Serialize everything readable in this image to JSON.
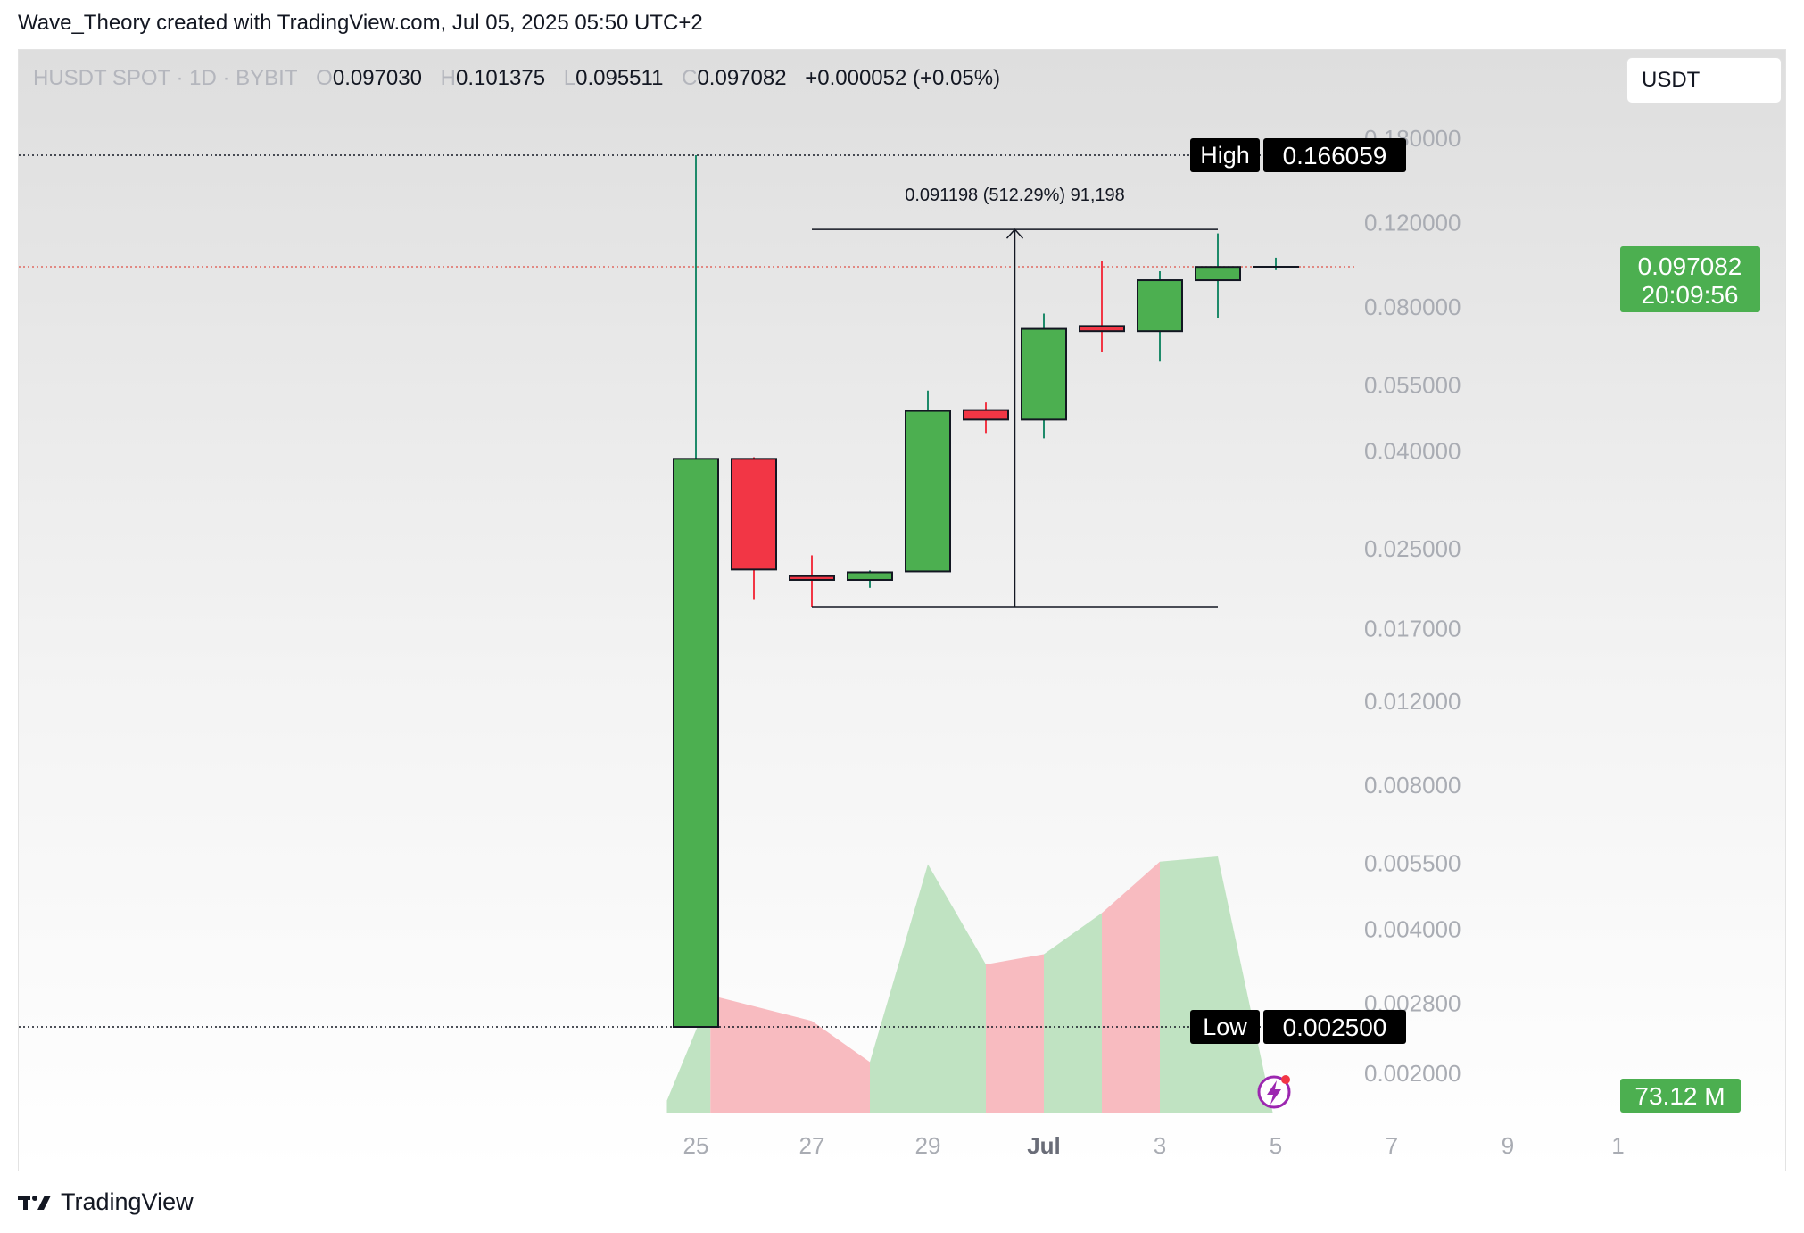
{
  "header": {
    "credit": "Wave_Theory created with TradingView.com, Jul 05, 2025 05:50 UTC+2"
  },
  "legend": {
    "symbol": "HUSDT SPOT · 1D · BYBIT",
    "o_label": "O",
    "o": "0.097030",
    "h_label": "H",
    "h": "0.101375",
    "l_label": "L",
    "l": "0.095511",
    "c_label": "C",
    "c": "0.097082",
    "change": "+0.000052 (+0.05%)"
  },
  "currency": "USDT",
  "high_label": {
    "text": "High",
    "value": "0.166059"
  },
  "low_label": {
    "text": "Low",
    "value": "0.002500"
  },
  "last_price": {
    "value": "0.097082",
    "countdown": "20:09:56"
  },
  "volume_label": "73.12 M",
  "measure_text": "0.091198 (512.29%) 91,198",
  "footer": {
    "brand": "TradingView"
  },
  "colors": {
    "up": "#4caf50",
    "down": "#f23645",
    "volume_up": "#bde2bf",
    "volume_down": "#f8b7bd",
    "price_tag": "#4caf50"
  },
  "chart_data": {
    "type": "candlestick",
    "scale": "log",
    "y_ticks": [
      "0.180000",
      "0.120000",
      "0.080000",
      "0.055000",
      "0.040000",
      "0.025000",
      "0.017000",
      "0.012000",
      "0.008000",
      "0.005500",
      "0.004000",
      "0.002800",
      "0.002000"
    ],
    "x_ticks": [
      "25",
      "27",
      "29",
      "Jul",
      "3",
      "5",
      "7",
      "9",
      "1"
    ],
    "candles": [
      {
        "date": "25",
        "o": 0.0025,
        "h": 0.166059,
        "l": 0.0025,
        "c": 0.0385
      },
      {
        "date": "26",
        "o": 0.0385,
        "h": 0.0388,
        "l": 0.0196,
        "c": 0.0226
      },
      {
        "date": "27",
        "o": 0.0219,
        "h": 0.0242,
        "l": 0.0189,
        "c": 0.0215
      },
      {
        "date": "28",
        "o": 0.0215,
        "h": 0.0225,
        "l": 0.0207,
        "c": 0.0223
      },
      {
        "date": "29",
        "o": 0.0224,
        "h": 0.0535,
        "l": 0.0224,
        "c": 0.0485
      },
      {
        "date": "30",
        "o": 0.0487,
        "h": 0.0505,
        "l": 0.0436,
        "c": 0.0465
      },
      {
        "date": "Jul",
        "o": 0.0465,
        "h": 0.0775,
        "l": 0.0425,
        "c": 0.072
      },
      {
        "date": "2",
        "o": 0.073,
        "h": 0.1,
        "l": 0.0645,
        "c": 0.0712
      },
      {
        "date": "3",
        "o": 0.0712,
        "h": 0.095,
        "l": 0.0615,
        "c": 0.091
      },
      {
        "date": "4",
        "o": 0.091,
        "h": 0.114,
        "l": 0.076,
        "c": 0.097
      },
      {
        "date": "5",
        "o": 0.09703,
        "h": 0.101375,
        "l": 0.095511,
        "c": 0.097082
      }
    ],
    "volume": [
      {
        "date": "25",
        "dir": "up",
        "v": 0.05
      },
      {
        "date": "25.5",
        "dir": "down",
        "v": 0.46
      },
      {
        "date": "27",
        "dir": "down",
        "v": 0.36
      },
      {
        "date": "28",
        "dir": "up",
        "v": 0.2
      },
      {
        "date": "29",
        "dir": "up",
        "v": 0.97
      },
      {
        "date": "30",
        "dir": "down",
        "v": 0.58
      },
      {
        "date": "Jul",
        "dir": "up",
        "v": 0.62
      },
      {
        "date": "2",
        "dir": "down",
        "v": 0.78
      },
      {
        "date": "3",
        "dir": "up",
        "v": 0.98
      },
      {
        "date": "4",
        "dir": "up",
        "v": 1.0
      }
    ]
  }
}
